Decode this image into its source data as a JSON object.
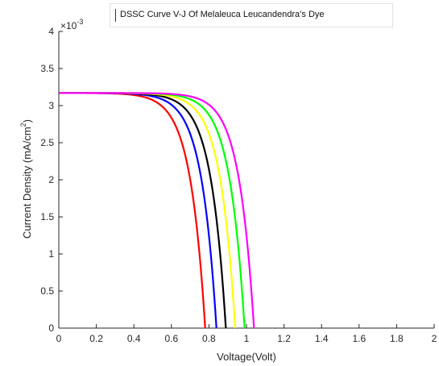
{
  "chart_data": {
    "type": "line",
    "title": "DSSC Curve V-J Of Melaleuca Leucandendra’s Dye",
    "xlabel": "Voltage(Volt)",
    "ylabel": "Current Density (mA/cm",
    "ylabel_sup": "2",
    "ylabel_close": ")",
    "y_exponent_base": "×10",
    "y_exponent_power": "-3",
    "xlim": [
      0,
      2
    ],
    "ylim": [
      0,
      4
    ],
    "x_ticks": [
      "0",
      "0.2",
      "0.4",
      "0.6",
      "0.8",
      "1",
      "1.2",
      "1.4",
      "1.6",
      "1.8",
      "2"
    ],
    "y_ticks": [
      "0",
      "0.5",
      "1",
      "1.5",
      "2",
      "2.5",
      "3",
      "3.5",
      "4"
    ],
    "grid": false,
    "jsc": 3.17,
    "series": [
      {
        "color": "#ff0000",
        "voc": 0.78
      },
      {
        "color": "#0000ff",
        "voc": 0.84
      },
      {
        "color": "#000000",
        "voc": 0.89
      },
      {
        "color": "#ffff00",
        "voc": 0.94
      },
      {
        "color": "#00ff00",
        "voc": 0.99
      },
      {
        "color": "#ff00ff",
        "voc": 1.04
      }
    ]
  }
}
